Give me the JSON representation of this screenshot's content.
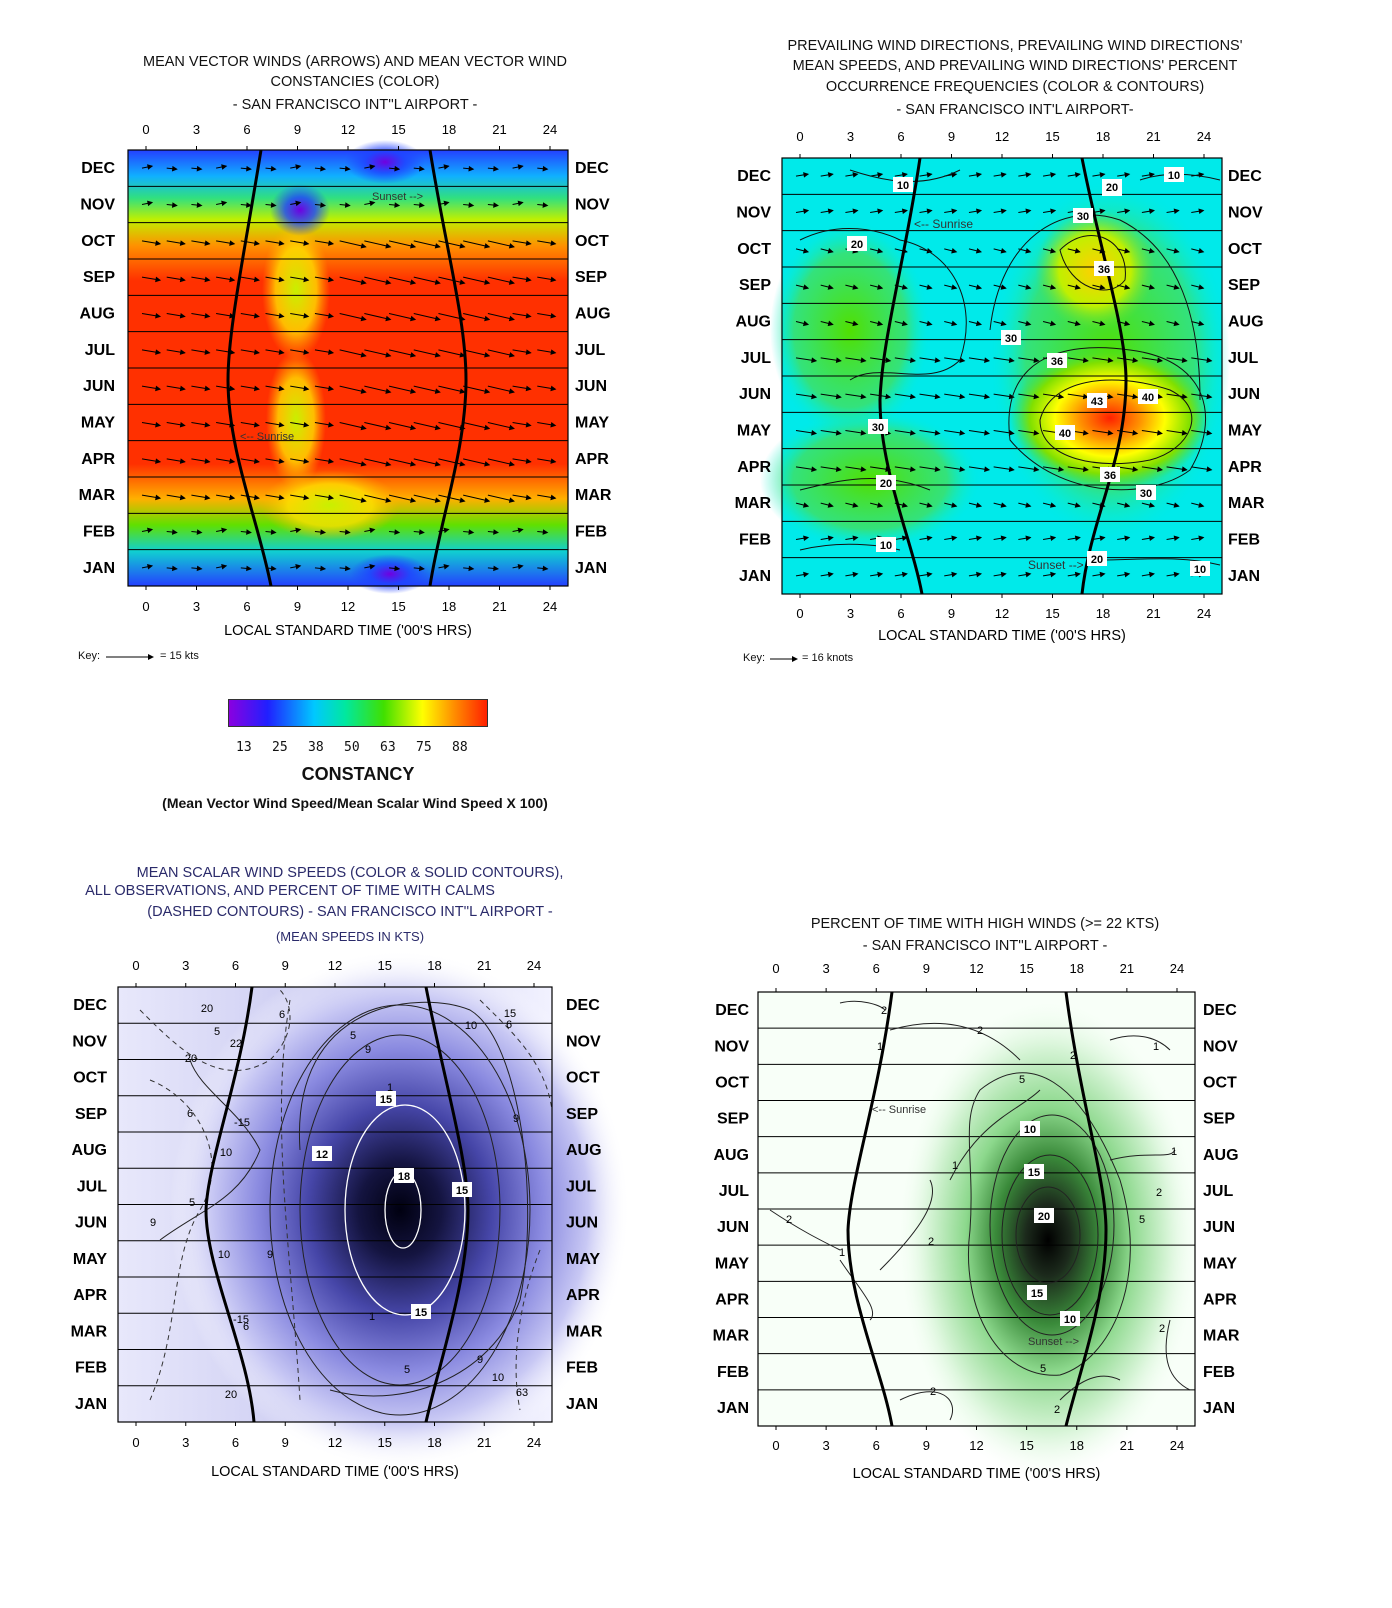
{
  "months": [
    "DEC",
    "NOV",
    "OCT",
    "SEP",
    "AUG",
    "JUL",
    "JUN",
    "MAY",
    "APR",
    "MAR",
    "FEB",
    "JAN"
  ],
  "hour_ticks": [
    "0",
    "3",
    "6",
    "9",
    "12",
    "15",
    "18",
    "21",
    "24"
  ],
  "xlabel": "LOCAL STANDARD TIME ('00'S HRS)",
  "panel1": {
    "title_lines": [
      "MEAN VECTOR WINDS (ARROWS) AND MEAN VECTOR WIND",
      "CONSTANCIES (COLOR)",
      "- SAN FRANCISCO INT''L AIRPORT -"
    ],
    "sunrise_label": "<-- Sunrise",
    "sunset_label": "Sunset -->",
    "key_label": "Key:",
    "key_value": "= 15 kts",
    "colorbar_ticks": [
      "13",
      "25",
      "38",
      "50",
      "63",
      "75",
      "88"
    ],
    "colorbar_name": "CONSTANCY",
    "colorbar_note": "(Mean Vector Wind Speed/Mean Scalar Wind Speed X 100)",
    "colors": [
      "#8a00e0",
      "#2020ff",
      "#00c8ff",
      "#00e8a0",
      "#40e000",
      "#ffff00",
      "#ff9000",
      "#ff2000"
    ]
  },
  "panel2": {
    "title_lines": [
      "PREVAILING WIND DIRECTIONS, PREVAILING WIND DIRECTIONS'",
      "MEAN SPEEDS, AND PREVAILING WIND DIRECTIONS' PERCENT",
      "OCCURRENCE FREQUENCIES (COLOR & CONTOURS)",
      "- SAN FRANCISCO INT'L AIRPORT-"
    ],
    "sunrise_label": "<-- Sunrise",
    "sunset_label": "Sunset -->",
    "key_label": "Key:",
    "key_value": "= 16 knots",
    "contour_labels": [
      "10",
      "20",
      "30",
      "10",
      "20",
      "36",
      "30",
      "36",
      "43",
      "40",
      "40",
      "30",
      "36",
      "30",
      "20",
      "20",
      "10",
      "20",
      "10"
    ]
  },
  "panel3": {
    "title_lines": [
      "MEAN SCALAR WIND SPEEDS (COLOR & SOLID CONTOURS),",
      "ALL OBSERVATIONS, AND PERCENT OF TIME WITH CALMS",
      "(DASHED CONTOURS) - SAN FRANCISCO INT''L AIRPORT -",
      "(MEAN SPEEDS IN KTS)"
    ],
    "boxed_labels": [
      "15",
      "12",
      "18",
      "15",
      "15"
    ],
    "plain_labels": [
      "20",
      "5",
      "22",
      "20",
      "6",
      "5",
      "9",
      "15",
      "10",
      "6",
      "6",
      "-15",
      "10",
      "9",
      "5",
      "9",
      "10",
      "9",
      "1",
      "1",
      "-15",
      "6",
      "20",
      "5",
      "9",
      "10",
      "63"
    ]
  },
  "panel4": {
    "title_lines": [
      "PERCENT OF TIME WITH HIGH WINDS (>= 22 KTS)",
      "- SAN FRANCISCO INT''L AIRPORT -"
    ],
    "sunrise_label": "<-- Sunrise",
    "sunset_label": "Sunset -->",
    "boxed_labels": [
      "10",
      "15",
      "20",
      "15",
      "10"
    ],
    "plain_labels": [
      "2",
      "2",
      "1",
      "2",
      "1",
      "5",
      "1",
      "2",
      "1",
      "2",
      "5",
      "2",
      "1",
      "2",
      "2",
      "5",
      "2"
    ]
  }
}
